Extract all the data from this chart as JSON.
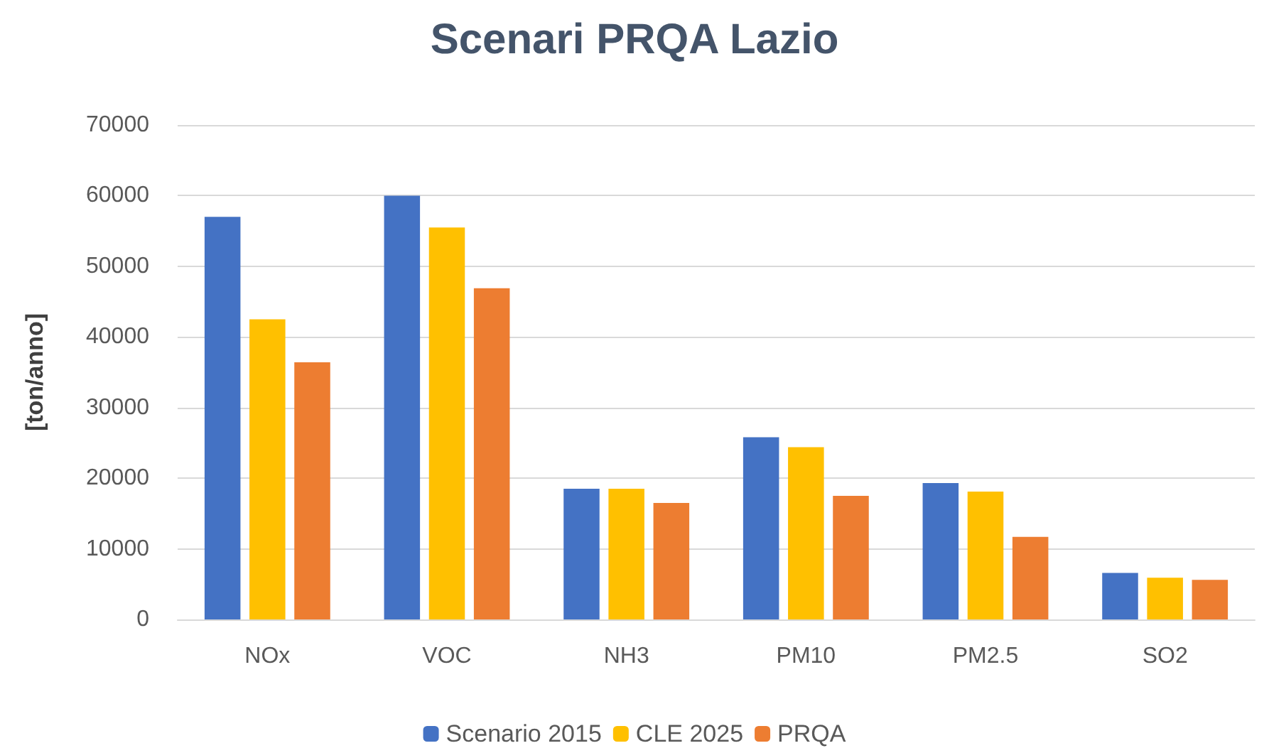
{
  "chart_data": {
    "type": "bar",
    "title": "Scenari PRQA Lazio",
    "ylabel": "[ton/anno]",
    "categories": [
      "NOx",
      "VOC",
      "NH3",
      "PM10",
      "PM2.5",
      "SO2"
    ],
    "series": [
      {
        "name": "Scenario 2015",
        "color": "#4472c4",
        "values": [
          57000,
          60000,
          18500,
          25800,
          19300,
          6600
        ]
      },
      {
        "name": "CLE 2025",
        "color": "#ffc000",
        "values": [
          42500,
          55500,
          18500,
          24400,
          18100,
          5900
        ]
      },
      {
        "name": "PRQA",
        "color": "#ed7d31",
        "values": [
          36400,
          46900,
          16500,
          17500,
          11700,
          5600
        ]
      }
    ],
    "ylim": [
      0,
      70000
    ],
    "yticks": [
      0,
      10000,
      20000,
      30000,
      40000,
      50000,
      60000,
      70000
    ],
    "grid": "y",
    "legend": "bottom"
  }
}
